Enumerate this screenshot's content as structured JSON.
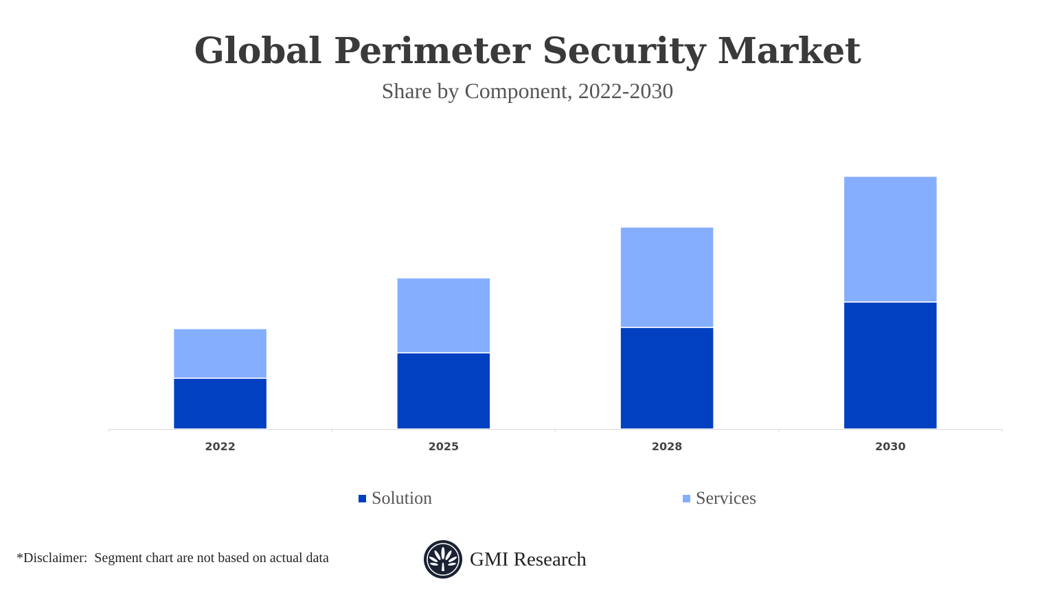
{
  "chart_data": {
    "type": "bar",
    "stacked": true,
    "title": "Global Perimeter Security Market",
    "subtitle": "Share by Component, 2022-2030",
    "xlabel": "",
    "ylabel": "",
    "categories": [
      "2022",
      "2025",
      "2028",
      "2030"
    ],
    "series": [
      {
        "name": "Solution",
        "values": [
          2,
          3,
          4,
          5
        ],
        "color": "#0040c1"
      },
      {
        "name": "Services",
        "values": [
          1.95,
          2.95,
          3.95,
          4.95
        ],
        "color": "#86aefe"
      }
    ],
    "ylim": [
      0,
      10
    ],
    "y_axis_shown": false,
    "grid": false,
    "legend": "bottom"
  },
  "footer": {
    "disclaimer": "*Disclaimer:  Segment chart are not based on actual data",
    "brand": "GMI Research"
  }
}
